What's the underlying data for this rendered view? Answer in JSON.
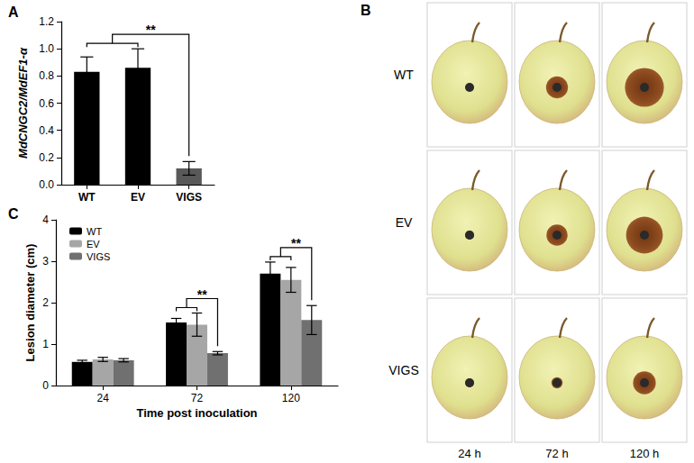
{
  "chart_data": [
    {
      "type": "bar",
      "title": "A",
      "categories": [
        "WT",
        "EV",
        "VIGS"
      ],
      "values": [
        0.83,
        0.86,
        0.12
      ],
      "errors": [
        0.11,
        0.14,
        0.05
      ],
      "colors": [
        "#000000",
        "#000000",
        "#595959"
      ],
      "ylabel": "MdCNGC2/MdEF1-α",
      "ylim": [
        0,
        1.2
      ],
      "yticks": [
        {
          "value": 0,
          "label": "0.0"
        },
        0.2,
        0.4,
        0.6,
        0.8,
        {
          "value": 1,
          "label": "1.0"
        },
        1.2
      ],
      "annotations": [
        {
          "text": "**",
          "groups": [
            [
              "WT",
              "EV"
            ],
            [
              "VIGS"
            ]
          ]
        }
      ]
    },
    {
      "type": "bar",
      "title": "C",
      "categories": [
        "24",
        "72",
        "120"
      ],
      "xlabel": "Time post inoculation",
      "ylabel": "Lesion diameter (cm)",
      "series": [
        {
          "name": "WT",
          "color": "#000000",
          "values": [
            0.57,
            1.52,
            2.7
          ],
          "errors": [
            0.04,
            0.1,
            0.28
          ]
        },
        {
          "name": "EV",
          "color": "#a6a6a6",
          "values": [
            0.63,
            1.47,
            2.55
          ],
          "errors": [
            0.05,
            0.28,
            0.3
          ]
        },
        {
          "name": "VIGS",
          "color": "#707070",
          "values": [
            0.61,
            0.78,
            1.58
          ],
          "errors": [
            0.04,
            0.04,
            0.35
          ]
        }
      ],
      "ylim": [
        0,
        4
      ],
      "yticks": [
        0,
        1,
        2,
        3,
        4
      ],
      "legend": "upper left",
      "annotations": [
        {
          "text": "**",
          "category": "72",
          "groups": [
            [
              "WT",
              "EV"
            ],
            [
              "VIGS"
            ]
          ]
        },
        {
          "text": "**",
          "category": "120",
          "groups": [
            [
              "WT",
              "EV"
            ],
            [
              "VIGS"
            ]
          ]
        }
      ]
    }
  ],
  "photo_panel": {
    "title": "B",
    "rows": [
      "WT",
      "EV",
      "VIGS"
    ],
    "columns": [
      "24 h",
      "72 h",
      "120 h"
    ]
  }
}
